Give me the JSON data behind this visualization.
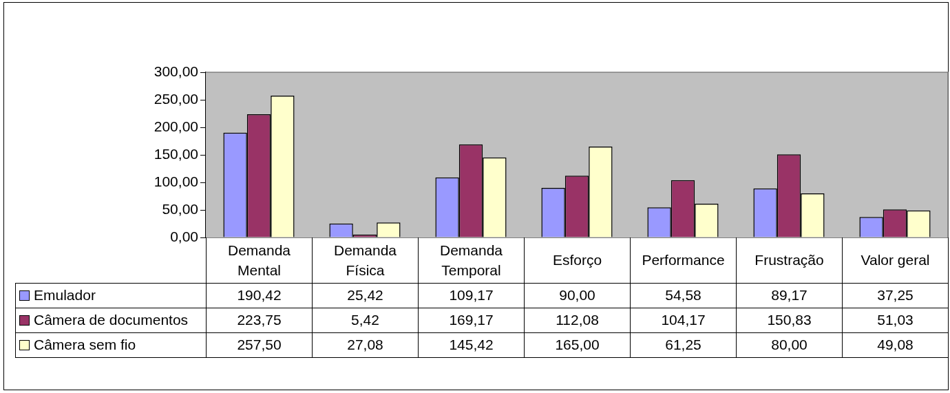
{
  "chart_data": {
    "type": "bar",
    "categories": [
      "Demanda Mental",
      "Demanda Física",
      "Demanda Temporal",
      "Esforço",
      "Performance",
      "Frustração",
      "Valor geral"
    ],
    "series": [
      {
        "name": "Emulador",
        "color": "#9999ff",
        "values": [
          190.42,
          25.42,
          109.17,
          90.0,
          54.58,
          89.17,
          37.25
        ],
        "value_labels": [
          "190,42",
          "25,42",
          "109,17",
          "90,00",
          "54,58",
          "89,17",
          "37,25"
        ]
      },
      {
        "name": "Câmera de documentos",
        "color": "#993366",
        "values": [
          223.75,
          5.42,
          169.17,
          112.08,
          104.17,
          150.83,
          51.03
        ],
        "value_labels": [
          "223,75",
          "5,42",
          "169,17",
          "112,08",
          "104,17",
          "150,83",
          "51,03"
        ]
      },
      {
        "name": "Câmera sem fio",
        "color": "#ffffcc",
        "values": [
          257.5,
          27.08,
          145.42,
          165.0,
          61.25,
          80.0,
          49.08
        ],
        "value_labels": [
          "257,50",
          "27,08",
          "145,42",
          "165,00",
          "61,25",
          "80,00",
          "49,08"
        ]
      }
    ],
    "ylim": [
      0,
      300
    ],
    "yticks": [
      {
        "value": 0,
        "label": "0,00"
      },
      {
        "value": 50,
        "label": "50,00"
      },
      {
        "value": 100,
        "label": "100,00"
      },
      {
        "value": 150,
        "label": "150,00"
      },
      {
        "value": 200,
        "label": "200,00"
      },
      {
        "value": 250,
        "label": "250,00"
      },
      {
        "value": 300,
        "label": "300,00"
      }
    ],
    "grid": false,
    "legend": "bottom"
  }
}
